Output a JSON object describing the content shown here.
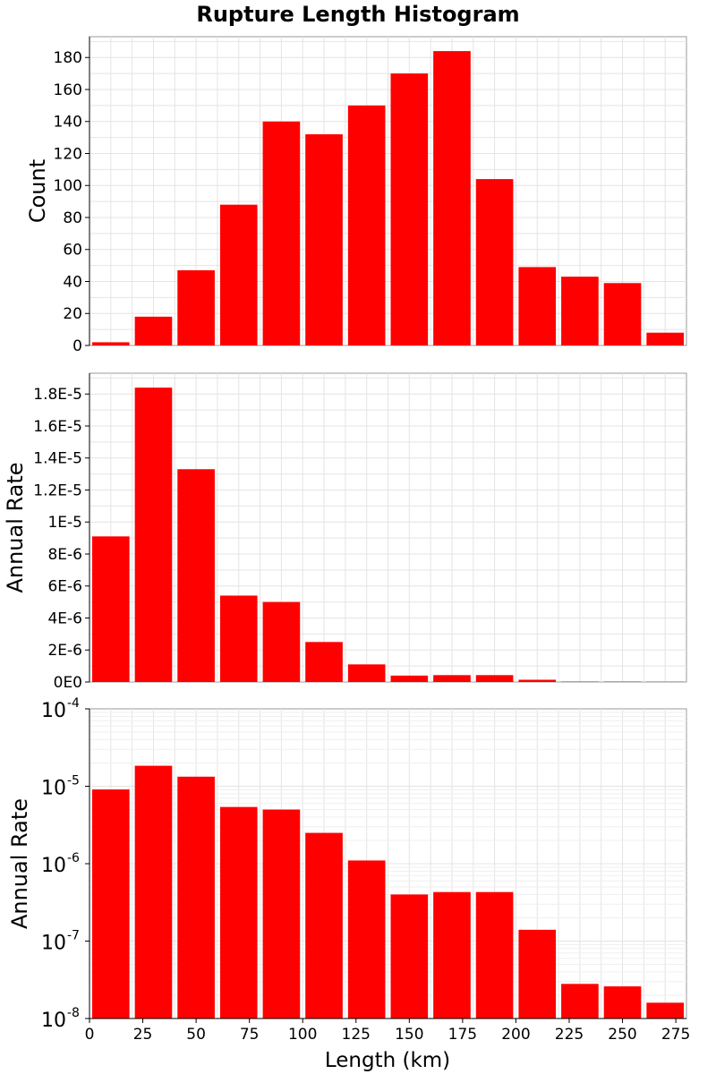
{
  "title": "Rupture Length Histogram",
  "colors": {
    "bar": "#ff0000",
    "grid": "#e4e4e4",
    "frame": "#9a9a9a"
  },
  "xaxis": {
    "label": "Length (km)",
    "ticks": [
      "0",
      "25",
      "50",
      "75",
      "100",
      "125",
      "150",
      "175",
      "200",
      "225",
      "250",
      "275"
    ],
    "range": [
      0,
      280
    ]
  },
  "chart_data": [
    {
      "type": "bar",
      "title": "Rupture Length Histogram",
      "xlabel": "",
      "ylabel": "Count",
      "bin_width": 20,
      "x": [
        10,
        30,
        50,
        70,
        90,
        110,
        130,
        150,
        170,
        190,
        210,
        230,
        250,
        270
      ],
      "values": [
        2,
        18,
        47,
        88,
        140,
        132,
        150,
        170,
        184,
        104,
        49,
        43,
        39,
        8
      ],
      "ylim": [
        0,
        193
      ],
      "yticks": [
        "0",
        "20",
        "40",
        "60",
        "80",
        "100",
        "120",
        "140",
        "160",
        "180"
      ],
      "ytick_values": [
        0,
        20,
        40,
        60,
        80,
        100,
        120,
        140,
        160,
        180
      ],
      "grid": true,
      "ylog": false
    },
    {
      "type": "bar",
      "title": "",
      "xlabel": "",
      "ylabel": "Annual Rate",
      "bin_width": 20,
      "x": [
        10,
        30,
        50,
        70,
        90,
        110,
        130,
        150,
        170,
        190,
        210,
        230,
        250,
        270
      ],
      "values": [
        9.1e-06,
        1.84e-05,
        1.33e-05,
        5.4e-06,
        5e-06,
        2.5e-06,
        1.1e-06,
        4e-07,
        4.3e-07,
        4.3e-07,
        1.4e-07,
        2.8e-08,
        2.6e-08,
        1.6e-08
      ],
      "ylim": [
        0,
        1.93e-05
      ],
      "yticks": [
        "0E0",
        "2E-6",
        "4E-6",
        "6E-6",
        "8E-6",
        "1E-5",
        "1.2E-5",
        "1.4E-5",
        "1.6E-5",
        "1.8E-5"
      ],
      "ytick_values": [
        0,
        2e-06,
        4e-06,
        6e-06,
        8e-06,
        1e-05,
        1.2e-05,
        1.4e-05,
        1.6e-05,
        1.8e-05
      ],
      "grid": true,
      "ylog": false
    },
    {
      "type": "bar",
      "title": "",
      "xlabel": "Length (km)",
      "ylabel": "Annual Rate",
      "bin_width": 20,
      "x": [
        10,
        30,
        50,
        70,
        90,
        110,
        130,
        150,
        170,
        190,
        210,
        230,
        250,
        270
      ],
      "values": [
        9.1e-06,
        1.84e-05,
        1.33e-05,
        5.4e-06,
        5e-06,
        2.5e-06,
        1.1e-06,
        4e-07,
        4.3e-07,
        4.3e-07,
        1.4e-07,
        2.8e-08,
        2.6e-08,
        1.6e-08
      ],
      "ylim": [
        1e-08,
        0.0001
      ],
      "yticks": [
        "-4",
        "-5",
        "-6",
        "-7",
        "-8"
      ],
      "ytick_values": [
        0.0001,
        1e-05,
        1e-06,
        1e-07,
        1e-08
      ],
      "ytick_base": "10",
      "grid": true,
      "ylog": true
    }
  ]
}
